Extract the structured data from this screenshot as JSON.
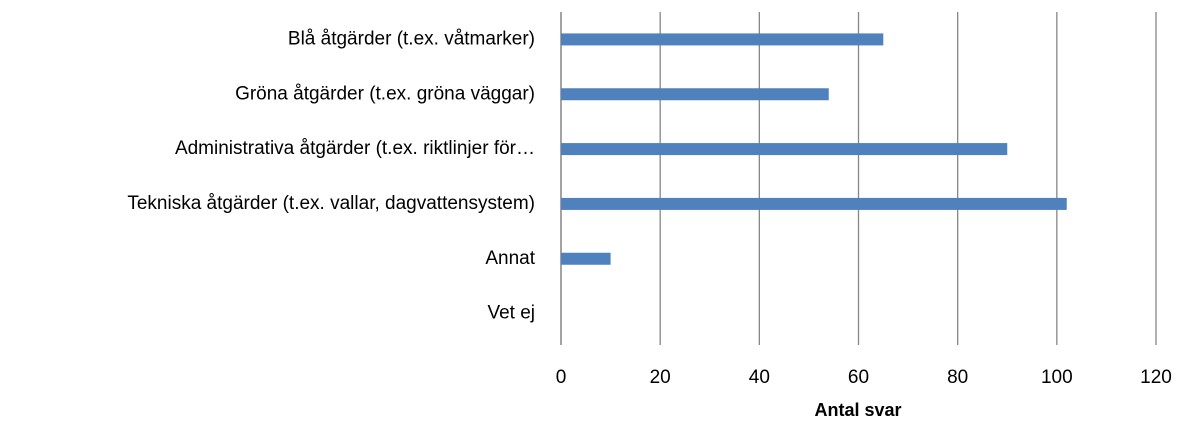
{
  "chart_data": {
    "type": "bar",
    "orientation": "horizontal",
    "categories": [
      "Blå åtgärder (t.ex. våtmarker)",
      "Gröna åtgärder (t.ex. gröna väggar)",
      "Administrativa åtgärder (t.ex. riktlinjer för…",
      "Tekniska åtgärder (t.ex. vallar, dagvattensystem)",
      "Annat",
      "Vet ej"
    ],
    "values": [
      65,
      54,
      90,
      102,
      10,
      0
    ],
    "color": "#4f81bd",
    "x_label": "Antal svar",
    "xlim": [
      0,
      120
    ],
    "xticks": [
      0,
      20,
      40,
      60,
      80,
      100,
      120
    ],
    "grid": true
  }
}
